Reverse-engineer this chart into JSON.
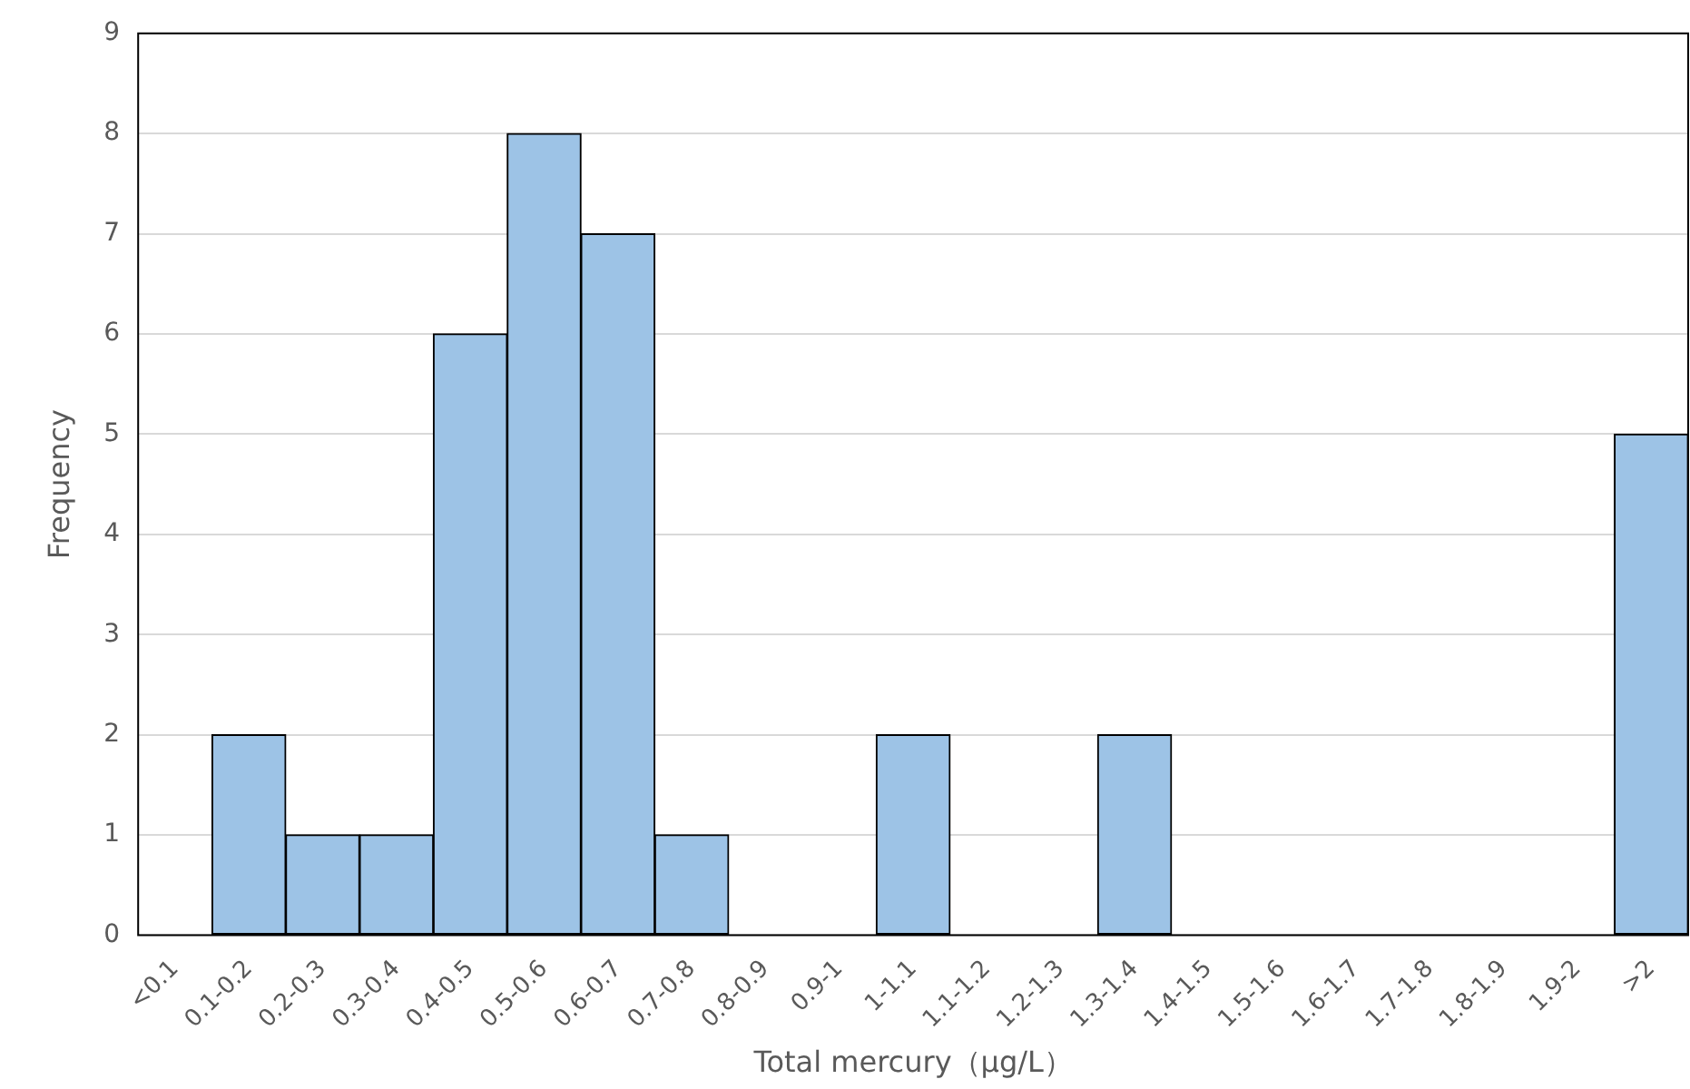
{
  "chart_data": {
    "type": "bar",
    "xlabel": "Total mercury（μg/L）",
    "ylabel": "Frequency",
    "categories": [
      "<0.1",
      "0.1-0.2",
      "0.2-0.3",
      "0.3-0.4",
      "0.4-0.5",
      "0.5-0.6",
      "0.6-0.7",
      "0.7-0.8",
      "0.8-0.9",
      "0.9-1",
      "1-1.1",
      "1.1-1.2",
      "1.2-1.3",
      "1.3-1.4",
      "1.4-1.5",
      "1.5-1.6",
      "1.6-1.7",
      "1.7-1.8",
      "1.8-1.9",
      "1.9-2",
      ">2"
    ],
    "values": [
      0,
      2,
      1,
      1,
      6,
      8,
      7,
      1,
      0,
      0,
      2,
      0,
      0,
      2,
      0,
      0,
      0,
      0,
      0,
      0,
      5
    ],
    "color": "#9dc3e6",
    "ylim": [
      0,
      9
    ],
    "yticks": [
      0,
      1,
      2,
      3,
      4,
      5,
      6,
      7,
      8,
      9
    ],
    "grid": "y"
  }
}
